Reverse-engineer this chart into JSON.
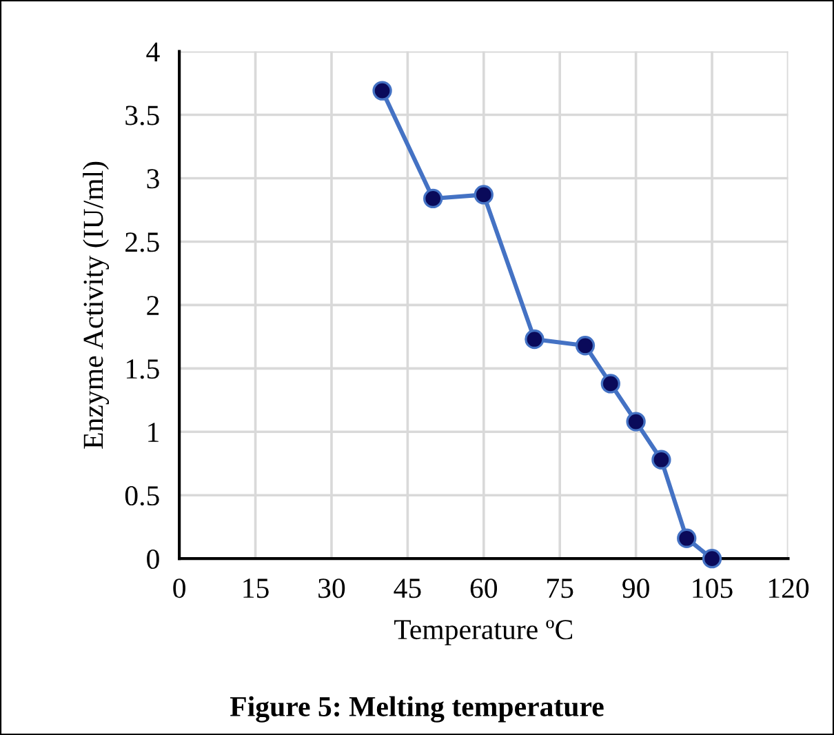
{
  "chart_data": {
    "type": "line",
    "xlabel": "Temperature ºC",
    "ylabel": "Enzyme Activity (IU/ml)",
    "x": [
      40,
      50,
      60,
      70,
      80,
      85,
      90,
      95,
      100,
      105
    ],
    "series": [
      {
        "color": "#4472c4",
        "values": [
          3.69,
          2.84,
          2.87,
          1.73,
          1.68,
          1.38,
          1.08,
          0.78,
          0.16,
          0
        ]
      }
    ],
    "xlim": [
      0,
      120
    ],
    "xticks": [
      0,
      15,
      30,
      45,
      60,
      75,
      90,
      105,
      120
    ],
    "ylim": [
      0,
      4
    ],
    "yticks": [
      0,
      0.5,
      1,
      1.5,
      2,
      2.5,
      3,
      3.5,
      4
    ],
    "grid": true,
    "marker": "circle",
    "line_style": "solid",
    "annotations": [
      "Figure 5: Melting temperature"
    ]
  }
}
